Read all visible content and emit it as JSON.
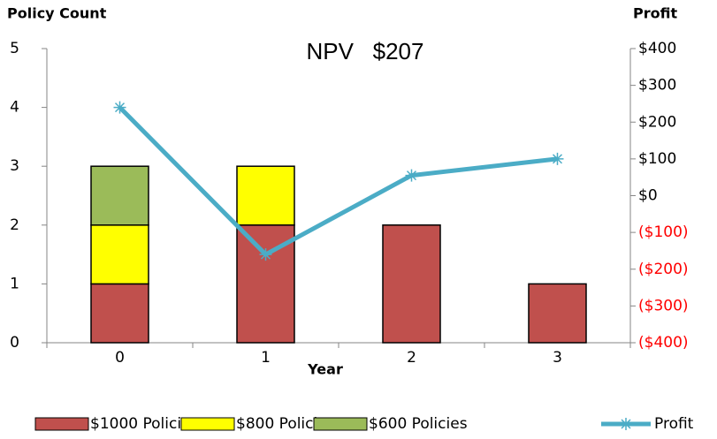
{
  "chart_data": {
    "type": "bar",
    "annotation": "NPV   $207",
    "y_label": "Policy Count",
    "y2_label": "Profit",
    "x_label": "Year",
    "categories": [
      "0",
      "1",
      "2",
      "3"
    ],
    "series": [
      {
        "name": "$1000 Policies",
        "color": "#c0504d",
        "values": [
          1,
          2,
          2,
          1
        ]
      },
      {
        "name": "$800 Policies",
        "color": "#ffff00",
        "values": [
          1,
          1,
          0,
          0
        ]
      },
      {
        "name": "$600 Policies",
        "color": "#9bbb59",
        "values": [
          1,
          0,
          0,
          0
        ]
      },
      {
        "name": "Profit",
        "type": "line",
        "axis": "y2",
        "color": "#4bacc6",
        "values": [
          240,
          -160,
          55,
          100
        ]
      }
    ],
    "stacked": true,
    "ylim": [
      0,
      5
    ],
    "yticks": [
      0,
      1,
      2,
      3,
      4,
      5
    ],
    "y2lim": [
      -400,
      400
    ],
    "y2ticks": [
      {
        "value": -400,
        "label": "($400)"
      },
      {
        "value": -300,
        "label": "($300)"
      },
      {
        "value": -200,
        "label": "($200)"
      },
      {
        "value": -100,
        "label": "($100)"
      },
      {
        "value": 0,
        "label": "$0"
      },
      {
        "value": 100,
        "label": "$100"
      },
      {
        "value": 200,
        "label": "$200"
      },
      {
        "value": 300,
        "label": "$300"
      },
      {
        "value": 400,
        "label": "$400"
      }
    ],
    "negative_tick_color": "#ff0000",
    "legend": "bottom"
  }
}
